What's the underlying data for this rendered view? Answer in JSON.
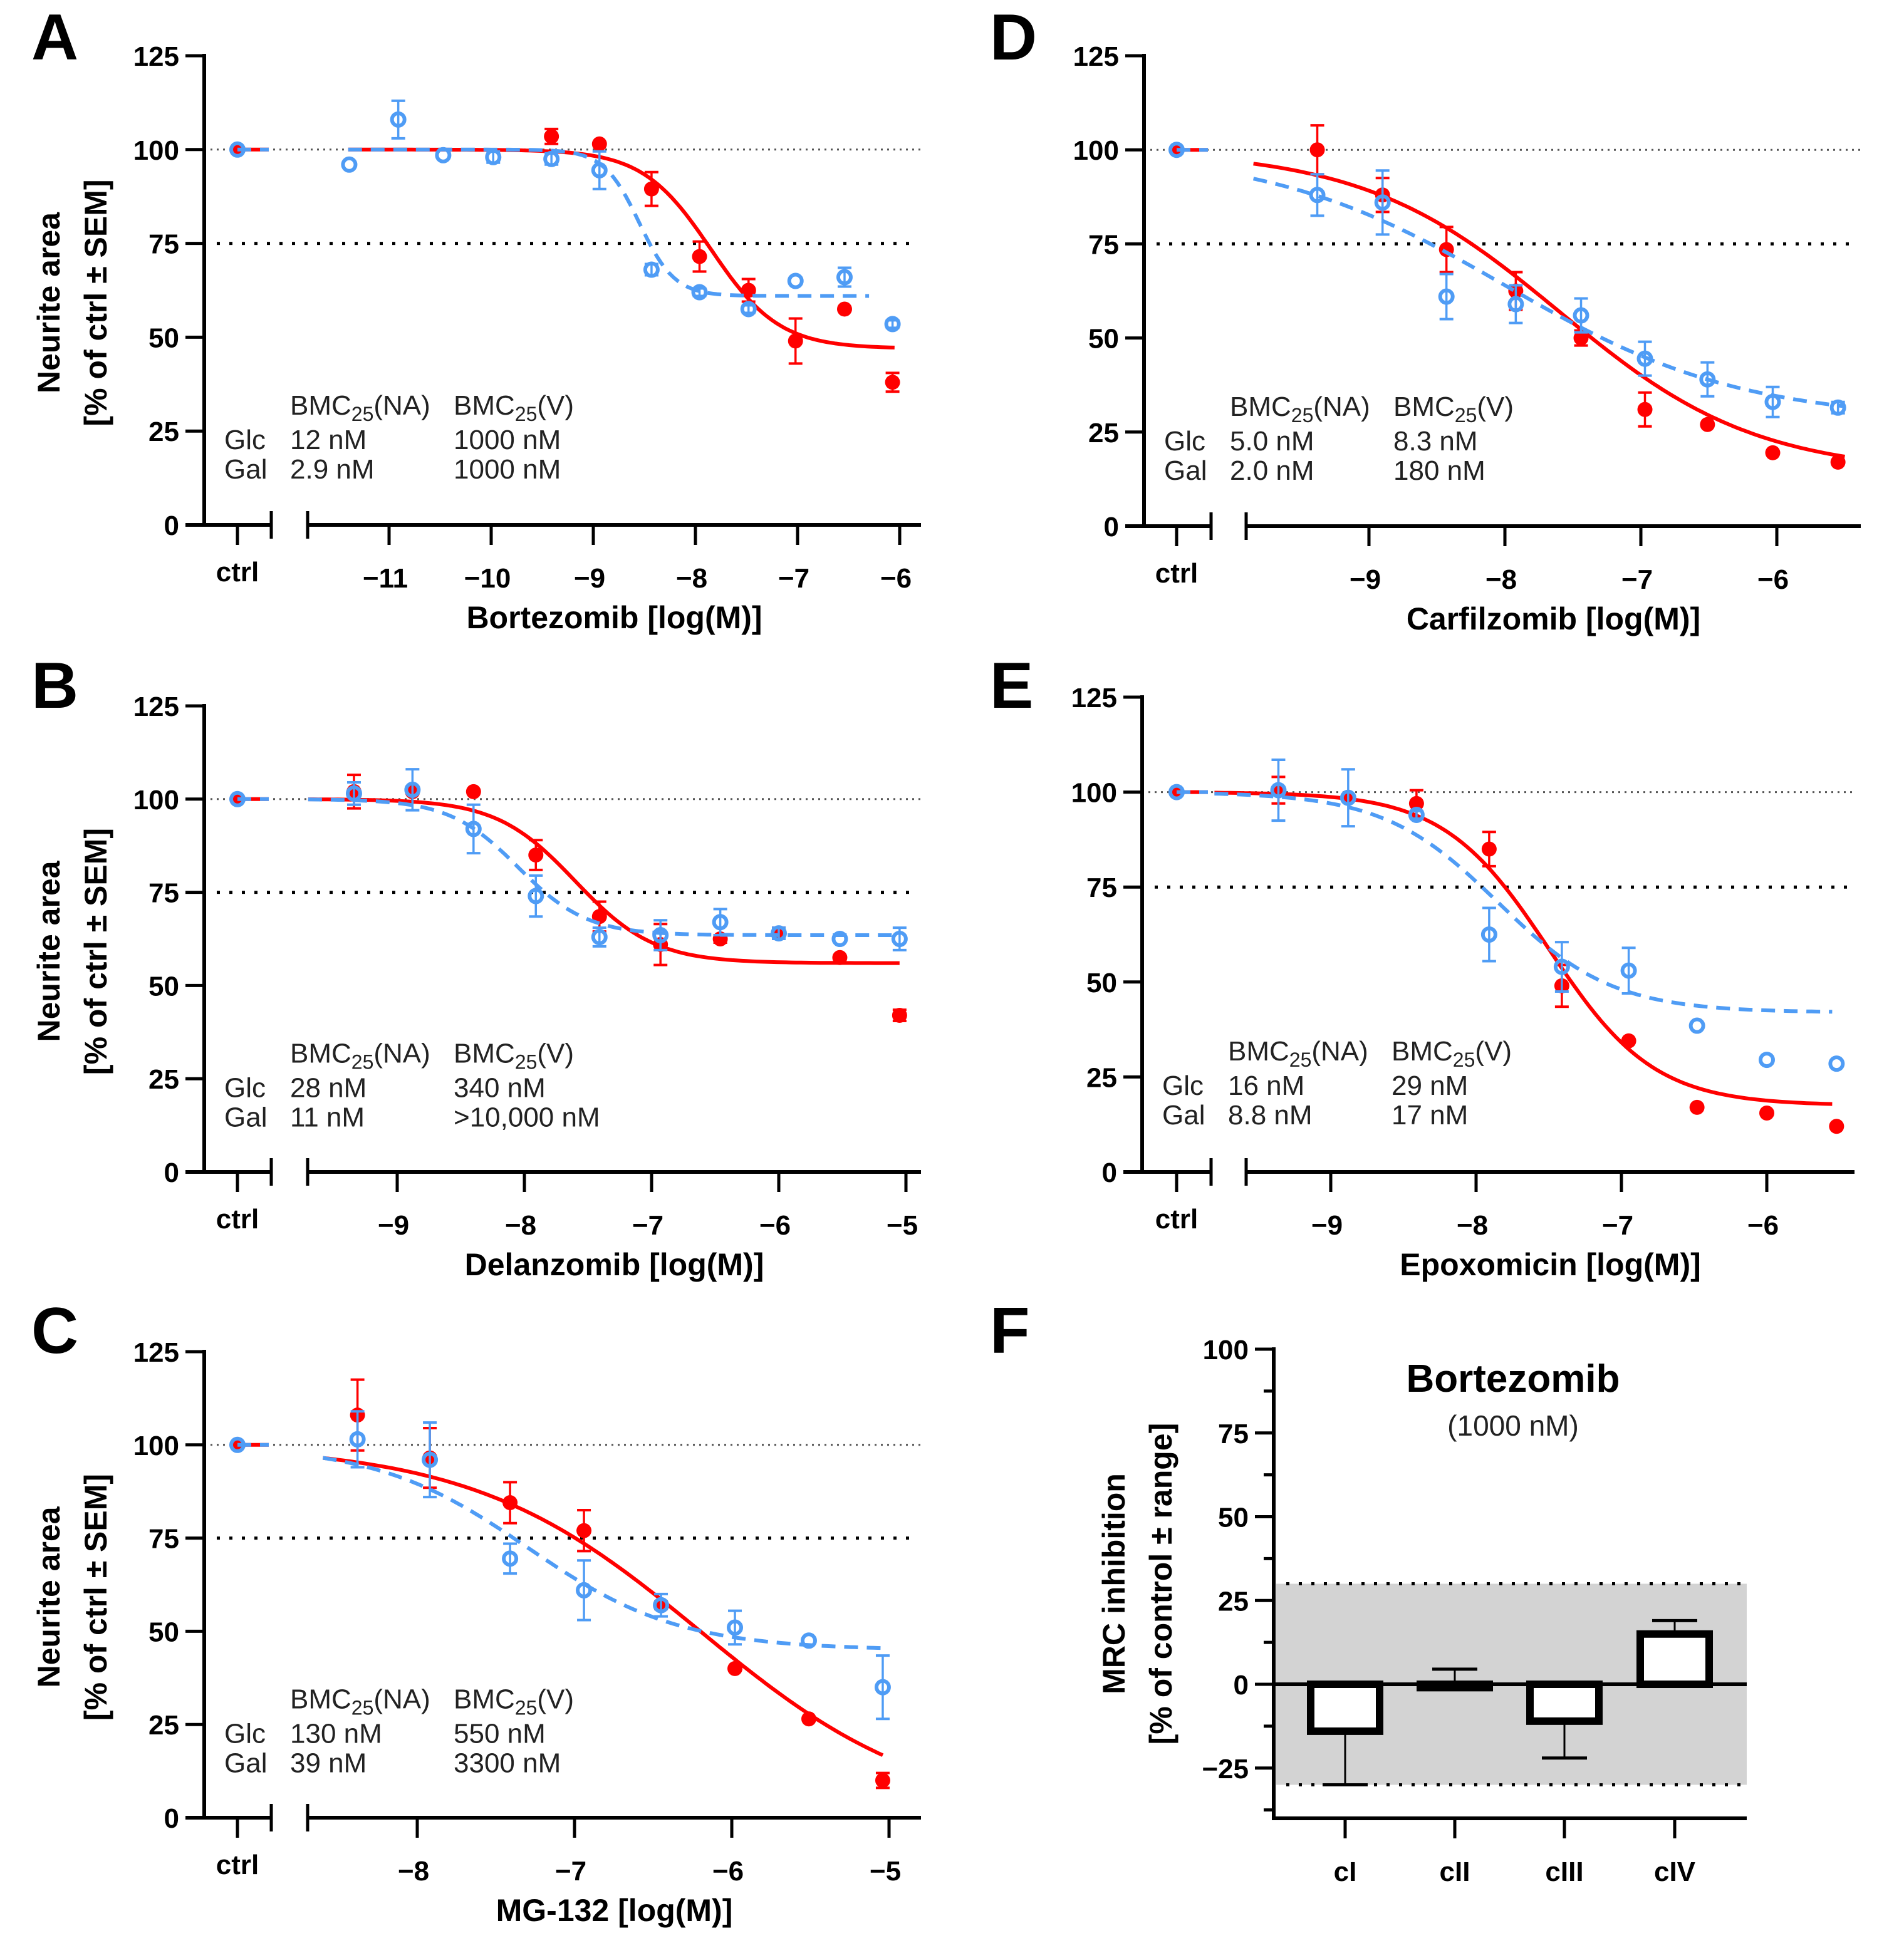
{
  "colors": {
    "glc": "#ff0000",
    "gal": "#4f9cf5",
    "axis": "#000000",
    "band": "#d3d3d3"
  },
  "chart_data": [
    {
      "id": "A",
      "type": "scatter",
      "panel_letter": "A",
      "xlabel": "Bortezomib [log(M)]",
      "ylabel_line1": "Neurite area",
      "ylabel_line2": "[% of ctrl ± SEM]",
      "ylim": [
        0,
        125
      ],
      "yticks": [
        0,
        25,
        50,
        75,
        100,
        125
      ],
      "xticks": [
        -11,
        -10,
        -9,
        -8,
        -7,
        -6
      ],
      "xtick_labels": [
        "−11",
        "−10",
        "−9",
        "−8",
        "−7",
        "−6"
      ],
      "ctrl_label": "ctrl",
      "reference_lines": [
        100,
        75
      ],
      "annotation": {
        "header_na": "BMC",
        "header_na_sub": "25",
        "header_na_tail": "(NA)",
        "header_v": "BMC",
        "header_v_sub": "25",
        "header_v_tail": "(V)",
        "rows": [
          {
            "label": "Glc",
            "na": "12 nM",
            "v": "1000 nM"
          },
          {
            "label": "Gal",
            "na": "2.9 nM",
            "v": "1000 nM"
          }
        ]
      },
      "series": [
        {
          "name": "Glc",
          "marker": "filled-circle",
          "line": "solid",
          "ctrl": 100,
          "x": [
            -9.41,
            -8.94,
            -8.43,
            -7.96,
            -7.48,
            -7.02,
            -6.54,
            -6.07
          ],
          "y": [
            103.5,
            101.5,
            89.5,
            71.5,
            62.5,
            49,
            57.5,
            38
          ],
          "err": [
            2,
            0,
            4.5,
            4,
            3,
            6,
            0,
            2.5
          ],
          "fit": {
            "top": 100,
            "bottom": 47,
            "logEC50": -7.85,
            "hill": 1.3,
            "xmin": -11.4,
            "xmax": -6.05
          }
        },
        {
          "name": "Gal",
          "marker": "open-circle",
          "line": "dashed",
          "ctrl": 100,
          "x": [
            -11.39,
            -10.91,
            -10.47,
            -9.98,
            -9.41,
            -8.94,
            -8.43,
            -7.96,
            -7.48,
            -7.02,
            -6.54,
            -6.07
          ],
          "y": [
            96,
            108,
            98.5,
            98,
            97.5,
            94.5,
            68,
            62,
            57.5,
            65,
            66,
            53.5
          ],
          "err": [
            0,
            5,
            0,
            1.5,
            1.5,
            5,
            1.5,
            1,
            1,
            0,
            2.5,
            1
          ],
          "fit": {
            "top": 100,
            "bottom": 61,
            "logEC50": -8.55,
            "hill": 2.5,
            "xmin": -11.4,
            "xmax": -6.3
          }
        }
      ]
    },
    {
      "id": "B",
      "type": "scatter",
      "panel_letter": "B",
      "xlabel": "Delanzomib [log(M)]",
      "ylabel_line1": "Neurite area",
      "ylabel_line2": "[% of ctrl ± SEM]",
      "ylim": [
        0,
        125
      ],
      "yticks": [
        0,
        25,
        50,
        75,
        100,
        125
      ],
      "xticks": [
        -9,
        -8,
        -7,
        -6,
        -5
      ],
      "xtick_labels": [
        "−9",
        "−8",
        "−7",
        "−6",
        "−5"
      ],
      "ctrl_label": "ctrl",
      "reference_lines": [
        100,
        75
      ],
      "annotation": {
        "header_na": "BMC",
        "header_na_sub": "25",
        "header_na_tail": "(NA)",
        "header_v": "BMC",
        "header_v_sub": "25",
        "header_v_tail": "(V)",
        "rows": [
          {
            "label": "Glc",
            "na": "28 nM",
            "v": "340 nM"
          },
          {
            "label": "Gal",
            "na": "11 nM",
            "v": ">10,000 nM"
          }
        ]
      },
      "series": [
        {
          "name": "Glc",
          "marker": "filled-circle",
          "line": "solid",
          "ctrl": 100,
          "x": [
            -9.34,
            -8.88,
            -8.4,
            -7.91,
            -7.41,
            -6.93,
            -6.46,
            -6.0,
            -5.52,
            -5.05
          ],
          "y": [
            102,
            102,
            102,
            85,
            68.5,
            61,
            62.5,
            64,
            57.5,
            42
          ],
          "err": [
            4.5,
            0,
            0,
            4,
            4,
            5.5,
            1,
            1.5,
            0,
            1.5
          ],
          "fit": {
            "top": 100,
            "bottom": 56,
            "logEC50": -7.6,
            "hill": 1.4,
            "xmin": -9.7,
            "xmax": -5.05
          }
        },
        {
          "name": "Gal",
          "marker": "open-circle",
          "line": "dashed",
          "ctrl": 100,
          "x": [
            -9.34,
            -8.88,
            -8.4,
            -7.91,
            -7.41,
            -6.93,
            -6.46,
            -6.0,
            -5.52,
            -5.05
          ],
          "y": [
            101.5,
            102.5,
            92,
            74,
            63,
            63.5,
            67,
            64,
            62.5,
            62.5
          ],
          "err": [
            3,
            5.5,
            6.5,
            5.5,
            2.5,
            4,
            3.5,
            1.5,
            0,
            3
          ],
          "fit": {
            "top": 100,
            "bottom": 63.5,
            "logEC50": -8.05,
            "hill": 1.6,
            "xmin": -9.7,
            "xmax": -5.05
          }
        }
      ]
    },
    {
      "id": "C",
      "type": "scatter",
      "panel_letter": "C",
      "xlabel": "MG-132 [log(M)]",
      "ylabel_line1": "Neurite area",
      "ylabel_line2": "[% of ctrl ± SEM]",
      "ylim": [
        0,
        125
      ],
      "yticks": [
        0,
        25,
        50,
        75,
        100,
        125
      ],
      "xticks": [
        -8,
        -7,
        -6,
        -5
      ],
      "xtick_labels": [
        "−8",
        "−7",
        "−6",
        "−5"
      ],
      "ctrl_label": "ctrl",
      "reference_lines": [
        100,
        75
      ],
      "annotation": {
        "header_na": "BMC",
        "header_na_sub": "25",
        "header_na_tail": "(NA)",
        "header_v": "BMC",
        "header_v_sub": "25",
        "header_v_tail": "(V)",
        "rows": [
          {
            "label": "Glc",
            "na": "130 nM",
            "v": "550 nM"
          },
          {
            "label": "Gal",
            "na": "39 nM",
            "v": "3300 nM"
          }
        ]
      },
      "series": [
        {
          "name": "Glc",
          "marker": "filled-circle",
          "line": "solid",
          "ctrl": 100,
          "x": [
            -8.38,
            -7.92,
            -7.41,
            -6.94,
            -6.45,
            -5.98,
            -5.51,
            -5.04
          ],
          "y": [
            108,
            96.5,
            84.5,
            77,
            57,
            40,
            26.5,
            10
          ],
          "err": [
            9.5,
            8,
            5.5,
            5.5,
            1,
            0,
            0,
            2
          ],
          "fit": {
            "top": 100,
            "bottom": 0,
            "logEC50": -6.2,
            "hill": 0.6,
            "xmin": -8.6,
            "xmax": -5.04
          }
        },
        {
          "name": "Gal",
          "marker": "open-circle",
          "line": "dashed",
          "ctrl": 100,
          "x": [
            -8.38,
            -7.92,
            -7.41,
            -6.94,
            -6.45,
            -5.98,
            -5.51,
            -5.04
          ],
          "y": [
            101.5,
            96,
            69.5,
            61,
            57,
            51,
            47.5,
            35
          ],
          "err": [
            7.5,
            10,
            4,
            8,
            3,
            4.5,
            0,
            8.5
          ],
          "fit": {
            "top": 100,
            "bottom": 45,
            "logEC50": -7.3,
            "hill": 0.9,
            "xmin": -8.6,
            "xmax": -5.04
          }
        }
      ]
    },
    {
      "id": "D",
      "type": "scatter",
      "panel_letter": "D",
      "xlabel": "Carfilzomib [log(M)]",
      "ylim": [
        0,
        125
      ],
      "yticks": [
        0,
        25,
        50,
        75,
        100,
        125
      ],
      "xticks": [
        -9,
        -8,
        -7,
        -6
      ],
      "xtick_labels": [
        "−9",
        "−8",
        "−7",
        "−6"
      ],
      "ctrl_label": "ctrl",
      "reference_lines": [
        100,
        75
      ],
      "annotation": {
        "header_na": "BMC",
        "header_na_sub": "25",
        "header_na_tail": "(NA)",
        "header_v": "BMC",
        "header_v_sub": "25",
        "header_v_tail": "(V)",
        "rows": [
          {
            "label": "Glc",
            "na": "5.0 nM",
            "v": "8.3 nM"
          },
          {
            "label": "Gal",
            "na": "2.0 nM",
            "v": "180 nM"
          }
        ]
      },
      "series": [
        {
          "name": "Glc",
          "marker": "filled-circle",
          "line": "solid",
          "ctrl": 100,
          "x": [
            -9.38,
            -8.9,
            -8.43,
            -7.92,
            -7.44,
            -6.97,
            -6.51,
            -6.03,
            -5.55
          ],
          "y": [
            100,
            88,
            73.5,
            62.5,
            50,
            31,
            27,
            19.5,
            17
          ],
          "err": [
            6.5,
            4.5,
            6,
            5,
            2,
            4.5,
            0,
            0,
            0
          ],
          "fit": {
            "top": 100,
            "bottom": 14,
            "logEC50": -7.6,
            "hill": 0.6,
            "xmin": -9.85,
            "xmax": -5.5
          }
        },
        {
          "name": "Gal",
          "marker": "open-circle",
          "line": "dashed",
          "ctrl": 100,
          "x": [
            -9.38,
            -8.9,
            -8.43,
            -7.92,
            -7.44,
            -6.97,
            -6.51,
            -6.03,
            -5.55
          ],
          "y": [
            88,
            86,
            61,
            59,
            56,
            44.5,
            39,
            33,
            31.5
          ],
          "err": [
            5.5,
            8.5,
            6,
            5,
            4.5,
            4.5,
            4.5,
            4,
            1.5
          ],
          "fit": {
            "top": 100,
            "bottom": 28,
            "logEC50": -8.0,
            "hill": 0.5,
            "xmin": -9.85,
            "xmax": -5.5
          }
        }
      ]
    },
    {
      "id": "E",
      "type": "scatter",
      "panel_letter": "E",
      "xlabel": "Epoxomicin [log(M)]",
      "ylim": [
        0,
        125
      ],
      "yticks": [
        0,
        25,
        50,
        75,
        100,
        125
      ],
      "xticks": [
        -9,
        -8,
        -7,
        -6
      ],
      "xtick_labels": [
        "−9",
        "−8",
        "−7",
        "−6"
      ],
      "ctrl_label": "ctrl",
      "reference_lines": [
        100,
        75
      ],
      "annotation": {
        "header_na": "BMC",
        "header_na_sub": "25",
        "header_na_tail": "(NA)",
        "header_v": "BMC",
        "header_v_sub": "25",
        "header_v_tail": "(V)",
        "rows": [
          {
            "label": "Glc",
            "na": "16 nM",
            "v": "29 nM"
          },
          {
            "label": "Gal",
            "na": "8.8 nM",
            "v": "17 nM"
          }
        ]
      },
      "series": [
        {
          "name": "Glc",
          "marker": "filled-circle",
          "line": "solid",
          "ctrl": 100,
          "x": [
            -9.36,
            -8.88,
            -8.41,
            -7.91,
            -7.41,
            -6.95,
            -6.48,
            -6.0,
            -5.52
          ],
          "y": [
            100.5,
            98.5,
            97,
            85,
            49,
            34.5,
            17,
            15.5,
            12
          ],
          "err": [
            3.5,
            0,
            3.5,
            4.5,
            5.5,
            0,
            0,
            0,
            0
          ],
          "fit": {
            "top": 100,
            "bottom": 17.5,
            "logEC50": -7.5,
            "hill": 1.2,
            "xmin": -9.8,
            "xmax": -5.55
          }
        },
        {
          "name": "Gal",
          "marker": "open-circle",
          "line": "dashed",
          "ctrl": 100,
          "x": [
            -9.36,
            -8.88,
            -8.41,
            -7.91,
            -7.41,
            -6.95,
            -6.48,
            -6.0,
            -5.52
          ],
          "y": [
            100.5,
            98.5,
            94,
            62.5,
            54,
            53,
            38.5,
            29.5,
            28.5
          ],
          "err": [
            8,
            7.5,
            1,
            7,
            6.5,
            6,
            0,
            0,
            0
          ],
          "fit": {
            "top": 100,
            "bottom": 42,
            "logEC50": -7.85,
            "hill": 1.1,
            "xmin": -9.8,
            "xmax": -5.55
          }
        }
      ]
    },
    {
      "id": "F",
      "type": "bar",
      "panel_letter": "F",
      "title": "Bortezomib",
      "subtitle": "(1000 nM)",
      "ylabel_line1": "MRC inhibition",
      "ylabel_line2": "[% of control ± range]",
      "ylim": [
        -40,
        100
      ],
      "yticks": [
        -25,
        0,
        25,
        50,
        75,
        100
      ],
      "ytick_labels": [
        "−25",
        "0",
        "25",
        "50",
        "75",
        "100"
      ],
      "minor_yticks": [
        -37.5,
        -12.5,
        12.5,
        37.5,
        62.5,
        87.5
      ],
      "categories": [
        "cI",
        "cII",
        "cIII",
        "cIV"
      ],
      "values": [
        -14,
        -1,
        -11,
        15
      ],
      "error_ends": [
        -30,
        4.5,
        -22,
        19
      ],
      "band": {
        "upper": 30,
        "lower": -30
      }
    }
  ]
}
